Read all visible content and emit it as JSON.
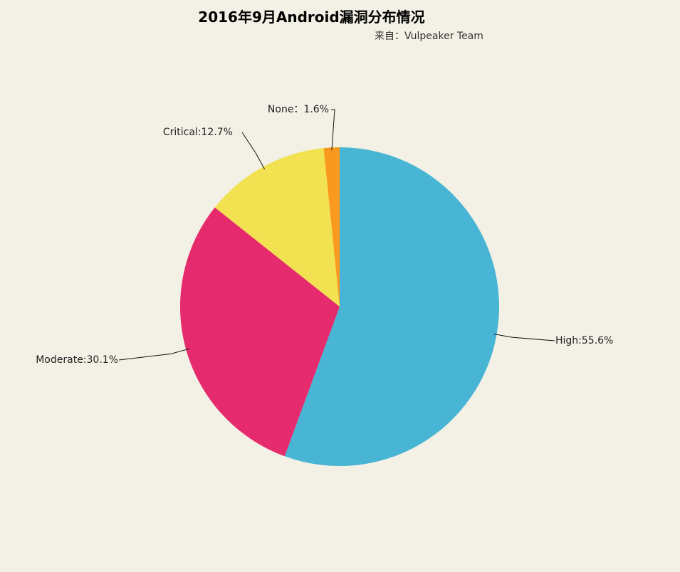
{
  "chart_data": {
    "type": "pie",
    "title": "2016年9月Android漏洞分布情况",
    "subtitle": "来自：Vulpeaker Team",
    "slices": [
      {
        "name": "High",
        "label": "High:55.6%",
        "value": 55.6,
        "color": "#47b5d3"
      },
      {
        "name": "Moderate",
        "label": "Moderate:30.1%",
        "value": 30.1,
        "color": "#e52b6d"
      },
      {
        "name": "Critical",
        "label": "Critical:12.7%",
        "value": 12.7,
        "color": "#f2e151"
      },
      {
        "name": "None",
        "label": "None：1.6%",
        "value": 1.6,
        "color": "#f99a1f"
      }
    ]
  }
}
